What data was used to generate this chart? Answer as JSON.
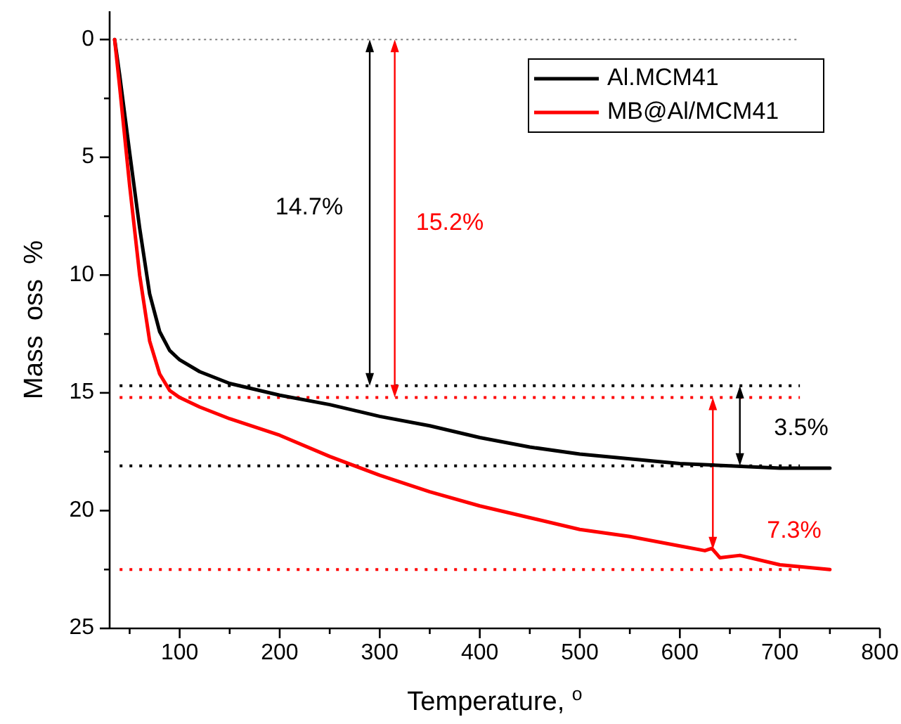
{
  "chart_data": {
    "type": "line",
    "xlabel": "Temperature, $^{o}$",
    "ylabel": "Mass  oss  %",
    "xlim": [
      30,
      800
    ],
    "ylim": [
      25,
      -1.2
    ],
    "xticks": [
      {
        "value": 50,
        "label": null
      },
      100,
      {
        "value": 150,
        "label": null
      },
      200,
      {
        "value": 250,
        "label": null
      },
      300,
      {
        "value": 350,
        "label": null
      },
      400,
      {
        "value": 450,
        "label": null
      },
      500,
      {
        "value": 550,
        "label": null
      },
      600,
      {
        "value": 650,
        "label": null
      },
      700,
      {
        "value": 750,
        "label": null
      },
      800
    ],
    "yticks": [
      0,
      {
        "value": 2.5,
        "label": null
      },
      5,
      {
        "value": 7.5,
        "label": null
      },
      10,
      {
        "value": 12.5,
        "label": null
      },
      15,
      {
        "value": 17.5,
        "label": null
      },
      20,
      {
        "value": 22.5,
        "label": null
      },
      25
    ],
    "grid": false,
    "legend": "top right",
    "line_style": "solid",
    "marker": "none",
    "series": [
      {
        "name": "Al.MCM41",
        "color": "#000000",
        "x": [
          35,
          40,
          50,
          60,
          70,
          80,
          90,
          100,
          120,
          150,
          200,
          250,
          300,
          350,
          400,
          450,
          500,
          550,
          600,
          650,
          700,
          750
        ],
        "values": [
          0,
          1.5,
          4.8,
          8,
          10.8,
          12.4,
          13.2,
          13.6,
          14.1,
          14.6,
          15.1,
          15.5,
          16.0,
          16.4,
          16.9,
          17.3,
          17.6,
          17.8,
          18.0,
          18.1,
          18.2,
          18.2
        ]
      },
      {
        "name": "MB@Al/MCM41",
        "color": "#ff0000",
        "x": [
          35,
          40,
          50,
          60,
          70,
          80,
          90,
          100,
          120,
          150,
          200,
          250,
          300,
          350,
          400,
          450,
          500,
          550,
          600,
          625,
          632,
          640,
          660,
          700,
          750
        ],
        "values": [
          0,
          2,
          6.2,
          10,
          12.8,
          14.2,
          14.9,
          15.2,
          15.6,
          16.1,
          16.8,
          17.7,
          18.5,
          19.2,
          19.8,
          20.3,
          20.8,
          21.1,
          21.5,
          21.7,
          21.6,
          22.0,
          21.9,
          22.3,
          22.5
        ]
      }
    ],
    "ref_lines": [
      {
        "axis": "y",
        "value": 0,
        "color": "#808080",
        "line_style": "dotted"
      },
      {
        "axis": "y",
        "value": 14.7,
        "color": "#000000",
        "line_style": "dotted"
      },
      {
        "axis": "y",
        "value": 18.1,
        "color": "#000000",
        "line_style": "dotted"
      },
      {
        "axis": "y",
        "value": 15.2,
        "color": "#ff0000",
        "line_style": "dotted"
      },
      {
        "axis": "y",
        "value": 22.5,
        "color": "#ff0000",
        "line_style": "dotted"
      }
    ],
    "annotations": [
      "14.7%",
      "15.2%",
      "3.5%",
      "7.3%"
    ]
  }
}
